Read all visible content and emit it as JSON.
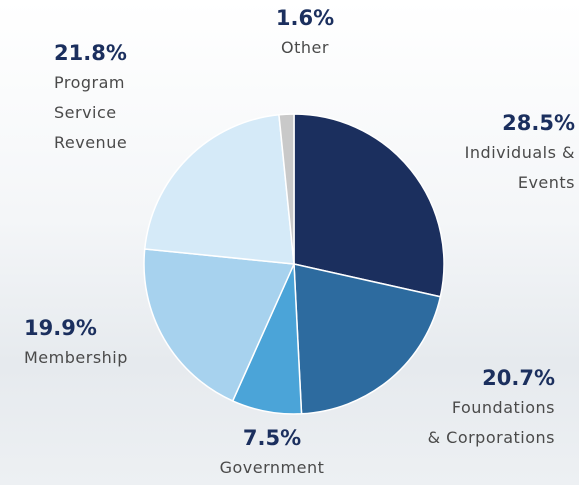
{
  "chart_data": {
    "type": "pie",
    "categories": [
      "Individuals &\nEvents",
      "Foundations\n& Corporations",
      "Government",
      "Membership",
      "Program\nService\nRevenue",
      "Other"
    ],
    "values": [
      28.5,
      20.7,
      7.5,
      19.9,
      21.8,
      1.6
    ],
    "value_labels": [
      "28.5%",
      "20.7%",
      "7.5%",
      "19.9%",
      "21.8%",
      "1.6%"
    ],
    "colors": [
      "#1b2f5e",
      "#2d6b9f",
      "#4ba4d8",
      "#a7d2ee",
      "#d5eaf8",
      "#c9c9c9"
    ]
  }
}
